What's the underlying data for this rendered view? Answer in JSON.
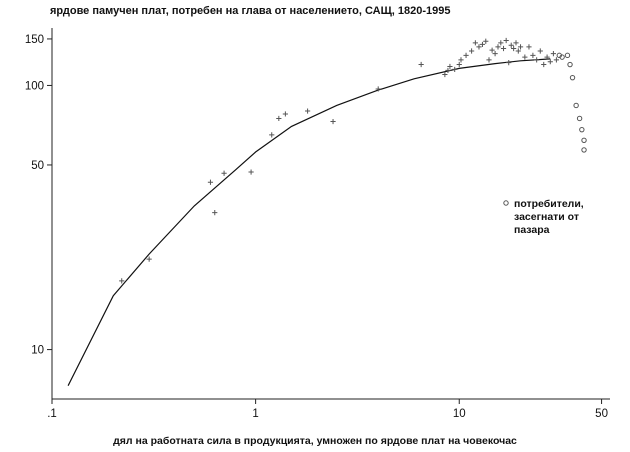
{
  "chart_data": {
    "type": "scatter",
    "title": "ярдове памучен плат, потребен на глава от населението, САЩ, 1820-1995",
    "xlabel": "дял на работната сила в продукцията, умножен по ярдове плат на човекочас",
    "ylabel": "",
    "x_scale": "log",
    "y_scale": "log",
    "xlim": [
      0.1,
      55
    ],
    "ylim": [
      6.5,
      165
    ],
    "x_ticks": [
      {
        "value": 0.1,
        "label": ".1"
      },
      {
        "value": 1,
        "label": "1"
      },
      {
        "value": 10,
        "label": "10"
      },
      {
        "value": 50,
        "label": "50"
      }
    ],
    "y_ticks": [
      {
        "value": 10,
        "label": "10"
      },
      {
        "value": 50,
        "label": "50"
      },
      {
        "value": 100,
        "label": "100"
      },
      {
        "value": 150,
        "label": "150"
      }
    ],
    "legend": {
      "position": "right",
      "entries": [
        {
          "label_lines": [
            "потребители,",
            "засегнати от",
            "пазара"
          ],
          "marker": "circle"
        }
      ]
    },
    "series": [
      {
        "name": "",
        "kind": "scatter",
        "marker": "plus",
        "points": [
          [
            0.22,
            18.2
          ],
          [
            0.3,
            22.0
          ],
          [
            0.6,
            43.0
          ],
          [
            0.63,
            33.0
          ],
          [
            0.7,
            46.5
          ],
          [
            0.95,
            47.0
          ],
          [
            1.2,
            65.0
          ],
          [
            1.3,
            75.0
          ],
          [
            1.4,
            78.0
          ],
          [
            1.8,
            80.0
          ],
          [
            2.4,
            73.0
          ],
          [
            4.0,
            97.0
          ],
          [
            6.5,
            120.0
          ],
          [
            8.5,
            110.0
          ],
          [
            8.8,
            114.0
          ],
          [
            9.0,
            118.0
          ],
          [
            9.5,
            115.0
          ],
          [
            10.0,
            120.0
          ],
          [
            10.2,
            125.0
          ],
          [
            10.8,
            130.0
          ],
          [
            11.5,
            135.0
          ],
          [
            12.0,
            145.0
          ],
          [
            12.5,
            140.0
          ],
          [
            13.0,
            143.0
          ],
          [
            13.5,
            147.0
          ],
          [
            14.0,
            125.0
          ],
          [
            14.5,
            136.0
          ],
          [
            15.0,
            132.0
          ],
          [
            15.5,
            140.0
          ],
          [
            16.0,
            145.0
          ],
          [
            16.5,
            138.0
          ],
          [
            17.0,
            148.0
          ],
          [
            17.5,
            122.0
          ],
          [
            18.0,
            142.0
          ],
          [
            18.5,
            138.0
          ],
          [
            19.0,
            145.0
          ],
          [
            19.5,
            135.0
          ],
          [
            20.0,
            140.0
          ],
          [
            21.0,
            128.0
          ],
          [
            22.0,
            140.0
          ],
          [
            23.0,
            130.0
          ],
          [
            24.0,
            125.0
          ],
          [
            25.0,
            135.0
          ],
          [
            26.0,
            120.0
          ],
          [
            27.0,
            128.0
          ],
          [
            28.0,
            123.0
          ],
          [
            29.0,
            132.0
          ],
          [
            30.0,
            125.0
          ]
        ]
      },
      {
        "name": "потребители, засегнати от пазара",
        "kind": "scatter",
        "marker": "circle",
        "points": [
          [
            31.0,
            130.0
          ],
          [
            32.0,
            128.0
          ],
          [
            34.0,
            130.0
          ],
          [
            35.0,
            120.0
          ],
          [
            36.0,
            107.0
          ],
          [
            37.5,
            84.0
          ],
          [
            39.0,
            75.0
          ],
          [
            40.0,
            68.0
          ],
          [
            41.0,
            62.0
          ],
          [
            41.0,
            57.0
          ]
        ]
      },
      {
        "name": "",
        "kind": "line",
        "points": [
          [
            0.12,
            7.3
          ],
          [
            0.2,
            16.0
          ],
          [
            0.3,
            23.0
          ],
          [
            0.5,
            35.0
          ],
          [
            0.8,
            48.0
          ],
          [
            1.0,
            56.0
          ],
          [
            1.5,
            70.0
          ],
          [
            2.5,
            84.0
          ],
          [
            4.0,
            96.0
          ],
          [
            6.0,
            106.0
          ],
          [
            10.0,
            116.0
          ],
          [
            15.0,
            121.0
          ],
          [
            20.0,
            124.0
          ],
          [
            28.0,
            126.0
          ]
        ]
      }
    ]
  }
}
